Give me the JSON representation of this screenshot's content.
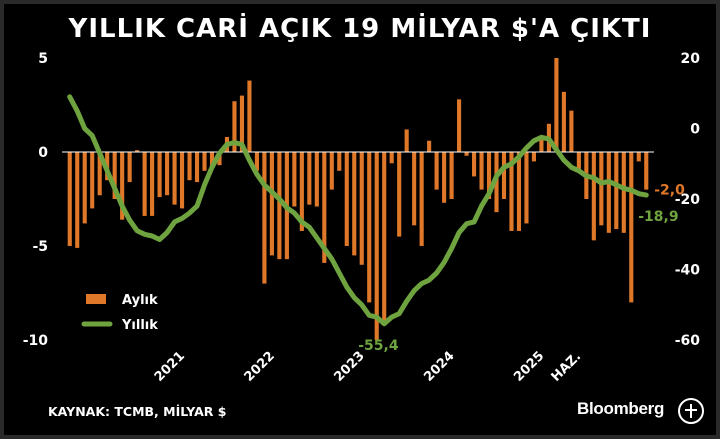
{
  "header": {
    "title": "YILLIK CARİ AÇIK 19 MİLYAR $'A ÇIKTI"
  },
  "footer": {
    "source": "KAYNAK: TCMB, MİLYAR $",
    "brand": "Bloomberg"
  },
  "colors": {
    "bar": "#e0782a",
    "line": "#6ea33f",
    "background": "#000000",
    "text": "#ffffff",
    "zero_line": "#ffffff"
  },
  "icons": {
    "brand_logo": "bloomberg-ht-logo-icon"
  },
  "chart_data": {
    "type": "bar",
    "title": "YILLIK CARİ AÇIK 19 MİLYAR $'A ÇIKTI",
    "start_month": "2020-01",
    "x_ticks": [
      {
        "label": "2021",
        "month": "2021-01"
      },
      {
        "label": "2022",
        "month": "2022-01"
      },
      {
        "label": "2023",
        "month": "2023-01"
      },
      {
        "label": "2024",
        "month": "2024-01"
      },
      {
        "label": "2025",
        "month": "2025-01"
      },
      {
        "label": "HAZ.",
        "month": "2025-06"
      }
    ],
    "y_left": {
      "ylim": [
        -10,
        5
      ],
      "ticks": [
        5,
        0,
        -5,
        -10
      ],
      "tick_labels": [
        "5",
        "0",
        "-5",
        "-10"
      ]
    },
    "y_right": {
      "ylim": [
        -60,
        20
      ],
      "ticks": [
        20,
        0,
        -20,
        -40,
        -60
      ],
      "tick_labels": [
        "20",
        "0",
        "-20",
        "-40",
        "-60"
      ]
    },
    "legend": {
      "placement": "left",
      "entries": [
        {
          "label": "Aylık",
          "series": "monthly"
        },
        {
          "label": "Yıllık",
          "series": "annual"
        }
      ]
    },
    "grid": false,
    "series": [
      {
        "name": "Aylık",
        "type": "bar",
        "axis": "left",
        "values": [
          -5.0,
          -5.1,
          -3.8,
          -3.0,
          -2.3,
          -1.5,
          -2.5,
          -3.6,
          -1.6,
          0.1,
          -3.4,
          -3.4,
          -2.4,
          -2.3,
          -2.8,
          -3.0,
          -1.5,
          -1.6,
          -1.0,
          -0.9,
          -0.7,
          0.8,
          2.7,
          3.0,
          3.8,
          -1.0,
          -7.0,
          -5.5,
          -5.7,
          -5.7,
          -2.9,
          -4.2,
          -2.8,
          -2.9,
          -5.9,
          -2.0,
          -1.0,
          -5.0,
          -5.5,
          -6.0,
          -8.0,
          -10.0,
          -9.0,
          -0.6,
          -4.5,
          1.2,
          -3.9,
          -5.0,
          0.6,
          -2.0,
          -2.7,
          -2.5,
          2.8,
          -0.2,
          -1.3,
          -2.0,
          -2.5,
          -3.2,
          -2.5,
          -4.2,
          -4.2,
          -3.8,
          -0.5,
          0.8,
          1.5,
          5.0,
          3.2,
          2.2,
          -1.0,
          -2.5,
          -4.7,
          -3.9,
          -4.3,
          -4.1,
          -4.3,
          -8.0,
          -0.5,
          -2.0
        ]
      },
      {
        "name": "Yıllık",
        "type": "line",
        "axis": "right",
        "values": [
          9.0,
          5.0,
          0.0,
          -2.0,
          -7.0,
          -12.0,
          -17.0,
          -22.0,
          -26.0,
          -29.0,
          -30.0,
          -30.5,
          -31.5,
          -29.5,
          -26.5,
          -25.5,
          -24.0,
          -22.0,
          -16.0,
          -11.0,
          -7.0,
          -4.5,
          -4.0,
          -4.5,
          -9.0,
          -13.0,
          -16.0,
          -18.0,
          -20.0,
          -22.5,
          -24.0,
          -26.5,
          -28.0,
          -31.0,
          -34.0,
          -37.0,
          -41.0,
          -45.0,
          -48.0,
          -50.0,
          -53.0,
          -53.5,
          -55.4,
          -53.5,
          -52.5,
          -49.0,
          -46.0,
          -44.0,
          -43.0,
          -41.0,
          -38.0,
          -34.0,
          -29.5,
          -27.0,
          -26.5,
          -22.0,
          -18.5,
          -13.5,
          -11.0,
          -10.0,
          -8.0,
          -5.5,
          -3.5,
          -2.5,
          -3.0,
          -6.0,
          -9.0,
          -11.0,
          -12.0,
          -13.5,
          -14.0,
          -15.5,
          -15.0,
          -16.0,
          -17.0,
          -17.5,
          -18.5,
          -18.9
        ]
      }
    ],
    "annotations": [
      {
        "label": "-2,0",
        "series": "Aylık",
        "index": 77,
        "color": "#e0782a"
      },
      {
        "label": "-18,9",
        "series": "Yıllık",
        "index": 77,
        "color": "#6ea33f"
      },
      {
        "label": "-55,4",
        "series": "Yıllık",
        "index": 42,
        "color": "#6ea33f"
      }
    ]
  }
}
